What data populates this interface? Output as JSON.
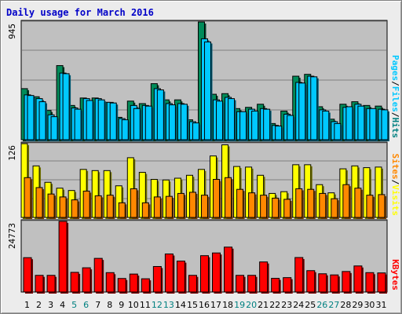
{
  "title": "Daily usage for March 2016",
  "colors": {
    "hits": "#008b59",
    "files": "#00c8ff",
    "pages": "#00c8ff",
    "visits": "#ffff00",
    "sites": "#ff8800",
    "kbytes": "#ff0000",
    "weekday_label": "#000000",
    "weekend_label": "#008080",
    "plot_bg": "#c0c0c0"
  },
  "chart_data": [
    {
      "type": "bar",
      "title": "",
      "ymax_label": "945",
      "ylim": [
        0,
        945
      ],
      "grid": true,
      "legend": [
        "Pages",
        "Files",
        "Hits"
      ],
      "legend_colors": [
        "#00c8ff",
        "#00c8ff",
        "#008080"
      ],
      "x": [
        "1",
        "2",
        "3",
        "4",
        "5",
        "6",
        "7",
        "8",
        "9",
        "10",
        "11",
        "12",
        "13",
        "14",
        "15",
        "16",
        "17",
        "18",
        "19",
        "20",
        "21",
        "22",
        "23",
        "24",
        "25",
        "26",
        "27",
        "28",
        "29",
        "30",
        "31"
      ],
      "series": [
        {
          "name": "Hits",
          "values": [
            410,
            345,
            235,
            595,
            275,
            335,
            335,
            300,
            180,
            310,
            290,
            450,
            320,
            320,
            160,
            945,
            365,
            370,
            250,
            260,
            285,
            130,
            230,
            510,
            525,
            265,
            165,
            285,
            305,
            275,
            270
          ]
        },
        {
          "name": "Files",
          "values": [
            360,
            330,
            200,
            535,
            255,
            330,
            330,
            300,
            170,
            275,
            275,
            410,
            290,
            290,
            145,
            810,
            320,
            340,
            225,
            245,
            250,
            115,
            205,
            460,
            510,
            240,
            145,
            260,
            285,
            250,
            245
          ]
        },
        {
          "name": "Pages",
          "values": [
            355,
            305,
            185,
            530,
            245,
            315,
            320,
            295,
            160,
            250,
            270,
            400,
            280,
            285,
            135,
            785,
            310,
            330,
            225,
            230,
            245,
            110,
            195,
            455,
            505,
            230,
            130,
            265,
            270,
            250,
            240
          ]
        }
      ]
    },
    {
      "type": "bar",
      "title": "",
      "ymax_label": "126",
      "ylim": [
        0,
        126
      ],
      "grid": true,
      "legend": [
        "Sites",
        "Visits"
      ],
      "legend_colors": [
        "#ff8800",
        "#ffff00"
      ],
      "x": [
        "1",
        "2",
        "3",
        "4",
        "5",
        "6",
        "7",
        "8",
        "9",
        "10",
        "11",
        "12",
        "13",
        "14",
        "15",
        "16",
        "17",
        "18",
        "19",
        "20",
        "21",
        "22",
        "23",
        "24",
        "25",
        "26",
        "27",
        "28",
        "29",
        "30",
        "31"
      ],
      "series": [
        {
          "name": "Visits",
          "values": [
            126,
            88,
            60,
            50,
            46,
            82,
            80,
            80,
            54,
            102,
            77,
            65,
            64,
            67,
            72,
            82,
            105,
            124,
            87,
            86,
            72,
            41,
            44,
            90,
            90,
            56,
            42,
            83,
            88,
            85,
            86
          ]
        },
        {
          "name": "Sites",
          "values": [
            68,
            51,
            40,
            35,
            30,
            45,
            37,
            38,
            25,
            49,
            25,
            35,
            36,
            41,
            43,
            38,
            65,
            68,
            48,
            42,
            38,
            33,
            31,
            49,
            48,
            41,
            32,
            56,
            50,
            38,
            39
          ]
        }
      ]
    },
    {
      "type": "bar",
      "title": "",
      "ymax_label": "24773",
      "ylim": [
        0,
        24773
      ],
      "grid": false,
      "legend": [
        "KBytes"
      ],
      "legend_colors": [
        "#ff0000"
      ],
      "x": [
        "1",
        "2",
        "3",
        "4",
        "5",
        "6",
        "7",
        "8",
        "9",
        "10",
        "11",
        "12",
        "13",
        "14",
        "15",
        "16",
        "17",
        "18",
        "19",
        "20",
        "21",
        "22",
        "23",
        "24",
        "25",
        "26",
        "27",
        "28",
        "29",
        "30",
        "31"
      ],
      "series": [
        {
          "name": "KBytes",
          "values": [
            12050,
            5850,
            5850,
            24773,
            6900,
            8500,
            11800,
            6800,
            4750,
            6300,
            4650,
            8950,
            13350,
            10850,
            5850,
            12750,
            13700,
            15750,
            5850,
            5850,
            10550,
            4800,
            5050,
            12100,
            7500,
            6400,
            6000,
            7200,
            9150,
            6800,
            6700
          ]
        }
      ]
    }
  ]
}
